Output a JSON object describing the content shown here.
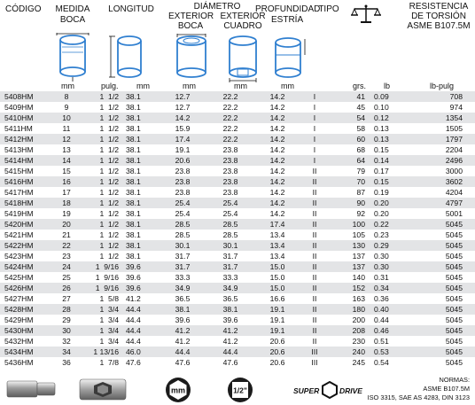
{
  "header": {
    "codigo": "CÓDIGO",
    "medida_l1": "MEDIDA",
    "medida_l2": "BOCA",
    "longitud": "LONGITUD",
    "diametro": "DIÁMETRO",
    "exterior_boca_l1": "EXTERIOR",
    "exterior_boca_l2": "BOCA",
    "exterior_cuadro_l1": "EXTERIOR",
    "exterior_cuadro_l2": "CUADRO",
    "profundidad_l1": "PROFUNDIDAD",
    "profundidad_l2": "ESTRÍA",
    "tipo": "TIPO",
    "resistencia_l1": "RESISTENCIA",
    "resistencia_l2": "DE TORSIÓN",
    "resistencia_l3": "ASME B107.5M",
    "scale_icon": "scale-icon"
  },
  "units": {
    "medida": "mm",
    "pulg": "pulg.",
    "longitud_mm": "mm",
    "ext_boca": "mm",
    "ext_cuadro": "mm",
    "prof": "mm",
    "grs": "grs.",
    "lb": "lb",
    "lb_pulg": "lb-pulg"
  },
  "rows": [
    {
      "code": "5408HM",
      "mm": "8",
      "pulg": "1  1/2",
      "lmm": "38.1",
      "ext": "12.7",
      "cua": "22.2",
      "prof": "14.2",
      "tipo": "I",
      "grs": "41",
      "lb": "0.09",
      "lbp": "708"
    },
    {
      "code": "5409HM",
      "mm": "9",
      "pulg": "1  1/2",
      "lmm": "38.1",
      "ext": "12.7",
      "cua": "22.2",
      "prof": "14.2",
      "tipo": "I",
      "grs": "45",
      "lb": "0.10",
      "lbp": "974"
    },
    {
      "code": "5410HM",
      "mm": "10",
      "pulg": "1  1/2",
      "lmm": "38.1",
      "ext": "14.2",
      "cua": "22.2",
      "prof": "14.2",
      "tipo": "I",
      "grs": "54",
      "lb": "0.12",
      "lbp": "1354"
    },
    {
      "code": "5411HM",
      "mm": "11",
      "pulg": "1  1/2",
      "lmm": "38.1",
      "ext": "15.9",
      "cua": "22.2",
      "prof": "14.2",
      "tipo": "I",
      "grs": "58",
      "lb": "0.13",
      "lbp": "1505"
    },
    {
      "code": "5412HM",
      "mm": "12",
      "pulg": "1  1/2",
      "lmm": "38.1",
      "ext": "17.4",
      "cua": "22.2",
      "prof": "14.2",
      "tipo": "I",
      "grs": "60",
      "lb": "0.13",
      "lbp": "1797"
    },
    {
      "code": "5413HM",
      "mm": "13",
      "pulg": "1  1/2",
      "lmm": "38.1",
      "ext": "19.1",
      "cua": "23.8",
      "prof": "14.2",
      "tipo": "I",
      "grs": "68",
      "lb": "0.15",
      "lbp": "2204"
    },
    {
      "code": "5414HM",
      "mm": "14",
      "pulg": "1  1/2",
      "lmm": "38.1",
      "ext": "20.6",
      "cua": "23.8",
      "prof": "14.2",
      "tipo": "I",
      "grs": "64",
      "lb": "0.14",
      "lbp": "2496"
    },
    {
      "code": "5415HM",
      "mm": "15",
      "pulg": "1  1/2",
      "lmm": "38.1",
      "ext": "23.8",
      "cua": "23.8",
      "prof": "14.2",
      "tipo": "II",
      "grs": "79",
      "lb": "0.17",
      "lbp": "3000"
    },
    {
      "code": "5416HM",
      "mm": "16",
      "pulg": "1  1/2",
      "lmm": "38.1",
      "ext": "23.8",
      "cua": "23.8",
      "prof": "14.2",
      "tipo": "II",
      "grs": "70",
      "lb": "0.15",
      "lbp": "3602"
    },
    {
      "code": "5417HM",
      "mm": "17",
      "pulg": "1  1/2",
      "lmm": "38.1",
      "ext": "23.8",
      "cua": "23.8",
      "prof": "14.2",
      "tipo": "II",
      "grs": "87",
      "lb": "0.19",
      "lbp": "4204"
    },
    {
      "code": "5418HM",
      "mm": "18",
      "pulg": "1  1/2",
      "lmm": "38.1",
      "ext": "25.4",
      "cua": "25.4",
      "prof": "14.2",
      "tipo": "II",
      "grs": "90",
      "lb": "0.20",
      "lbp": "4797"
    },
    {
      "code": "5419HM",
      "mm": "19",
      "pulg": "1  1/2",
      "lmm": "38.1",
      "ext": "25.4",
      "cua": "25.4",
      "prof": "14.2",
      "tipo": "II",
      "grs": "92",
      "lb": "0.20",
      "lbp": "5001"
    },
    {
      "code": "5420HM",
      "mm": "20",
      "pulg": "1  1/2",
      "lmm": "38.1",
      "ext": "28.5",
      "cua": "28.5",
      "prof": "17.4",
      "tipo": "II",
      "grs": "100",
      "lb": "0.22",
      "lbp": "5045"
    },
    {
      "code": "5421HM",
      "mm": "21",
      "pulg": "1  1/2",
      "lmm": "38.1",
      "ext": "28.5",
      "cua": "28.5",
      "prof": "13.4",
      "tipo": "II",
      "grs": "105",
      "lb": "0.23",
      "lbp": "5045"
    },
    {
      "code": "5422HM",
      "mm": "22",
      "pulg": "1  1/2",
      "lmm": "38.1",
      "ext": "30.1",
      "cua": "30.1",
      "prof": "13.4",
      "tipo": "II",
      "grs": "130",
      "lb": "0.29",
      "lbp": "5045"
    },
    {
      "code": "5423HM",
      "mm": "23",
      "pulg": "1  1/2",
      "lmm": "38.1",
      "ext": "31.7",
      "cua": "31.7",
      "prof": "13.4",
      "tipo": "II",
      "grs": "137",
      "lb": "0.30",
      "lbp": "5045"
    },
    {
      "code": "5424HM",
      "mm": "24",
      "pulg": "1  9/16",
      "lmm": "39.6",
      "ext": "31.7",
      "cua": "31.7",
      "prof": "15.0",
      "tipo": "II",
      "grs": "137",
      "lb": "0.30",
      "lbp": "5045"
    },
    {
      "code": "5425HM",
      "mm": "25",
      "pulg": "1  9/16",
      "lmm": "39.6",
      "ext": "33.3",
      "cua": "33.3",
      "prof": "15.0",
      "tipo": "II",
      "grs": "140",
      "lb": "0.31",
      "lbp": "5045"
    },
    {
      "code": "5426HM",
      "mm": "26",
      "pulg": "1  9/16",
      "lmm": "39.6",
      "ext": "34.9",
      "cua": "34.9",
      "prof": "15.0",
      "tipo": "II",
      "grs": "152",
      "lb": "0.34",
      "lbp": "5045"
    },
    {
      "code": "5427HM",
      "mm": "27",
      "pulg": "1  5/8",
      "lmm": "41.2",
      "ext": "36.5",
      "cua": "36.5",
      "prof": "16.6",
      "tipo": "II",
      "grs": "163",
      "lb": "0.36",
      "lbp": "5045"
    },
    {
      "code": "5428HM",
      "mm": "28",
      "pulg": "1  3/4",
      "lmm": "44.4",
      "ext": "38.1",
      "cua": "38.1",
      "prof": "19.1",
      "tipo": "II",
      "grs": "180",
      "lb": "0.40",
      "lbp": "5045"
    },
    {
      "code": "5429HM",
      "mm": "29",
      "pulg": "1  3/4",
      "lmm": "44.4",
      "ext": "39.6",
      "cua": "39.6",
      "prof": "19.1",
      "tipo": "II",
      "grs": "200",
      "lb": "0.44",
      "lbp": "5045"
    },
    {
      "code": "5430HM",
      "mm": "30",
      "pulg": "1  3/4",
      "lmm": "44.4",
      "ext": "41.2",
      "cua": "41.2",
      "prof": "19.1",
      "tipo": "II",
      "grs": "208",
      "lb": "0.46",
      "lbp": "5045"
    },
    {
      "code": "5432HM",
      "mm": "32",
      "pulg": "1  3/4",
      "lmm": "44.4",
      "ext": "41.2",
      "cua": "41.2",
      "prof": "20.6",
      "tipo": "II",
      "grs": "230",
      "lb": "0.51",
      "lbp": "5045"
    },
    {
      "code": "5434HM",
      "mm": "34",
      "pulg": "1 13/16",
      "lmm": "46.0",
      "ext": "44.4",
      "cua": "44.4",
      "prof": "20.6",
      "tipo": "III",
      "grs": "240",
      "lb": "0.53",
      "lbp": "5045"
    },
    {
      "code": "5436HM",
      "mm": "36",
      "pulg": "1  7/8",
      "lmm": "47.6",
      "ext": "47.6",
      "cua": "47.6",
      "prof": "20.6",
      "tipo": "III",
      "grs": "245",
      "lb": "0.54",
      "lbp": "5045"
    }
  ],
  "bottom": {
    "mm_badge": "mm",
    "drive_badge": "1/2\"",
    "super_text": "SUPER",
    "drive_text": "DRIVE",
    "normas_l1": "NORMAS:",
    "normas_l2": "ASME B107.5M",
    "normas_l3": "ISO 3315, SAE AS 4283, DIN 3123",
    "icons": [
      "socket-side-icon",
      "socket-front-icon",
      "mm-badge-icon",
      "half-inch-drive-icon",
      "super-drive-logo"
    ]
  },
  "colors": {
    "row_stripe": "#e3e4e6",
    "diagram_blue": "#2f7fd0",
    "badge_dark": "#1b1b1b"
  }
}
